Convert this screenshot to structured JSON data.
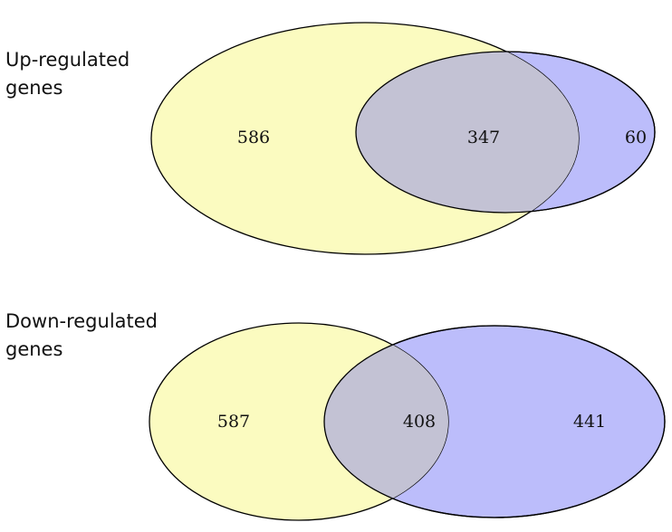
{
  "colors": {
    "set_a": "#fbfbc0",
    "set_b": "#bcbdfb",
    "overlap": "#c3c2d4",
    "outline": "#000000"
  },
  "panels": [
    {
      "label": "Up-regulated\ngenes",
      "counts": {
        "only_a": "586",
        "overlap": "347",
        "only_b": "60"
      }
    },
    {
      "label": "Down-regulated\ngenes",
      "counts": {
        "only_a": "587",
        "overlap": "408",
        "only_b": "441"
      }
    }
  ]
}
